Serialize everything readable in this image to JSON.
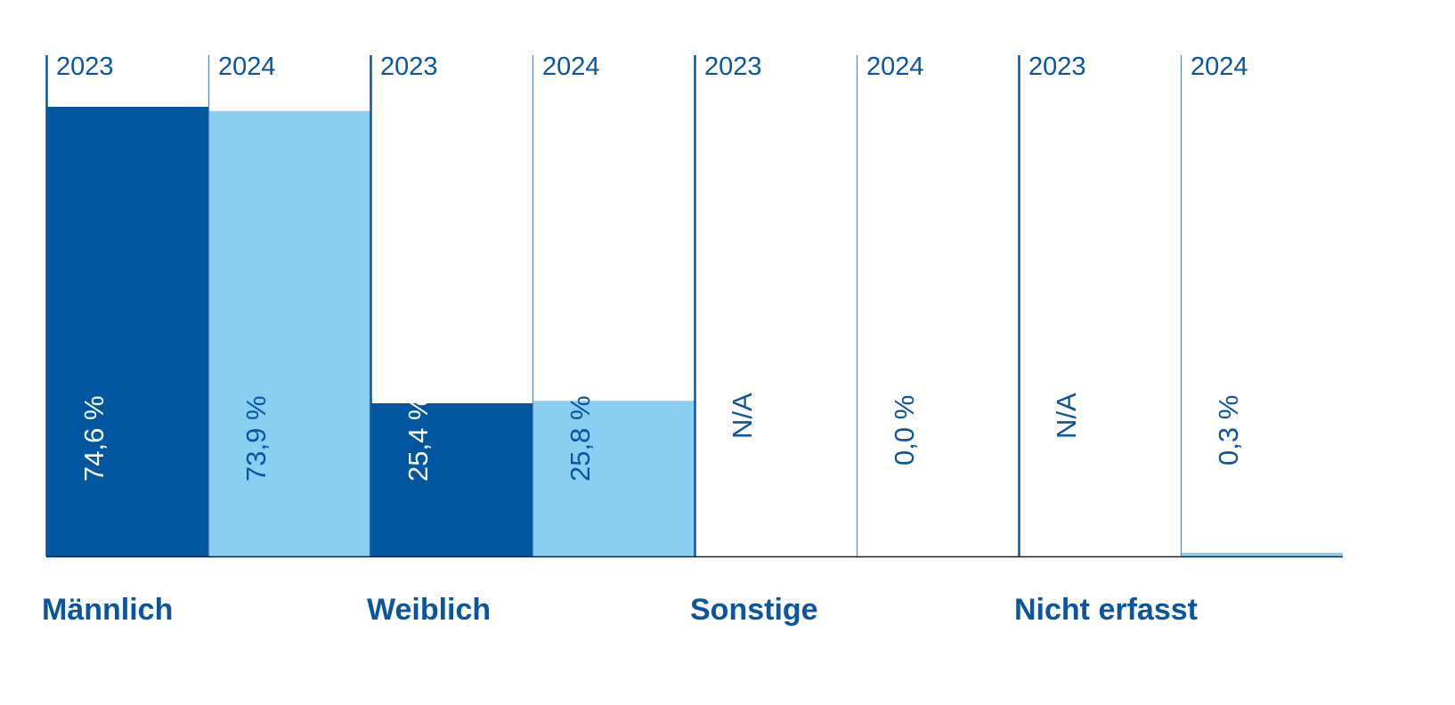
{
  "chart_data": {
    "type": "bar",
    "categories": [
      "Männlich",
      "Weiblich",
      "Sonstige",
      "Nicht erfasst"
    ],
    "series": [
      {
        "name": "2023",
        "values": [
          74.6,
          25.4,
          null,
          null
        ],
        "labels": [
          "74,6 %",
          "25,4 %",
          "N/A",
          "N/A"
        ]
      },
      {
        "name": "2024",
        "values": [
          73.9,
          25.8,
          0.0,
          0.3
        ],
        "labels": [
          "73,9 %",
          "25,8 %",
          "0,0 %",
          "0,3 %"
        ]
      }
    ],
    "ylim": [
      0,
      100
    ],
    "grid": false,
    "colors": {
      "2023": "#0057a0",
      "2024": "#88cff2",
      "text_dark": "#0a55a0",
      "axis": "#222222"
    }
  }
}
